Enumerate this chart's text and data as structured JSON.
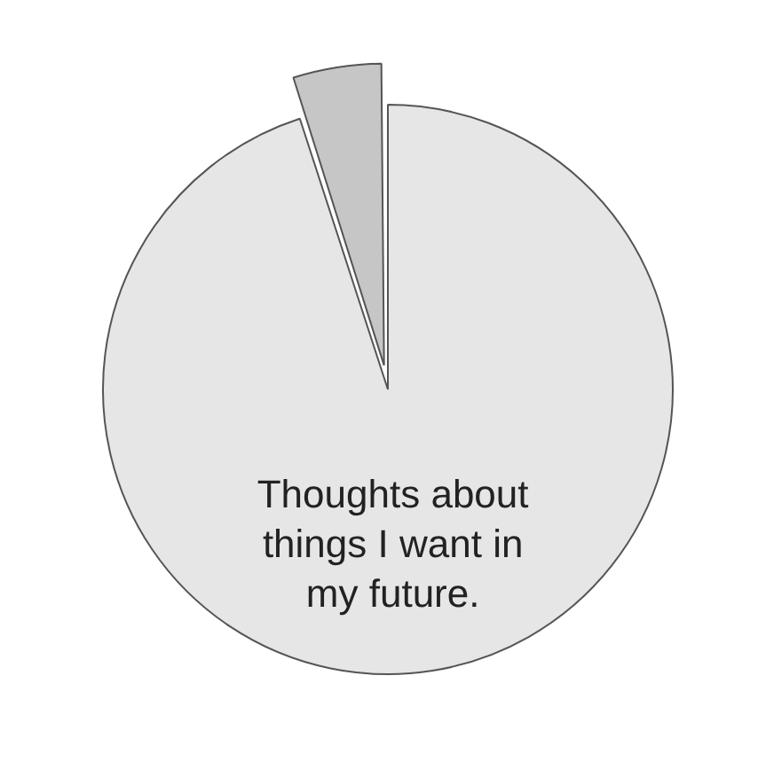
{
  "chart_data": {
    "type": "pie",
    "categories": [
      "Thoughts about things I want in my future.",
      null
    ],
    "values": [
      95,
      5
    ],
    "colors": [
      "#e6e6e6",
      "#c6c6c6"
    ],
    "legend": false
  }
}
